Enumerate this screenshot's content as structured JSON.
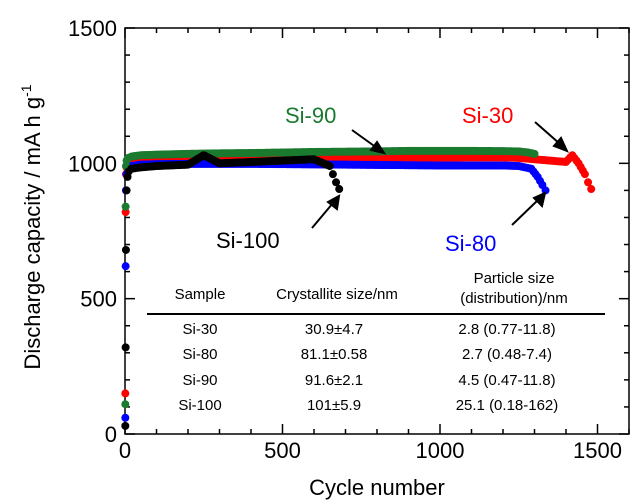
{
  "chart_data": {
    "type": "scatter",
    "xlabel": "Cycle number",
    "ylabel": "Discharge capacity / mA h g",
    "ylabel_superscript": "-1",
    "xlim": [
      0,
      1600
    ],
    "ylim": [
      0,
      1500
    ],
    "xticks": [
      "0",
      "500",
      "1000",
      "1500"
    ],
    "yticks": [
      "0",
      "500",
      "1000",
      "1500"
    ],
    "grid": false,
    "series": [
      {
        "name": "Si-30",
        "color": "#ff0000",
        "x": [
          1,
          2,
          3,
          5,
          10,
          20,
          50,
          100,
          200,
          300,
          400,
          500,
          600,
          700,
          800,
          900,
          1000,
          1100,
          1200,
          1250,
          1300,
          1350,
          1400,
          1420,
          1440,
          1460,
          1470,
          1480
        ],
        "y": [
          150,
          820,
          960,
          985,
          1000,
          1005,
          1008,
          1010,
          1012,
          1013,
          1015,
          1016,
          1017,
          1018,
          1019,
          1020,
          1021,
          1022,
          1022,
          1020,
          1015,
          1010,
          1005,
          1030,
          1000,
          960,
          930,
          905
        ]
      },
      {
        "name": "Si-80",
        "color": "#0000ff",
        "x": [
          1,
          2,
          3,
          5,
          10,
          20,
          50,
          100,
          200,
          300,
          400,
          500,
          600,
          700,
          800,
          900,
          1000,
          1100,
          1200,
          1250,
          1290,
          1310,
          1325,
          1335
        ],
        "y": [
          60,
          620,
          900,
          960,
          980,
          990,
          995,
          997,
          998,
          998,
          998,
          997,
          996,
          995,
          994,
          993,
          992,
          992,
          992,
          990,
          980,
          950,
          920,
          900
        ]
      },
      {
        "name": "Si-90",
        "color": "#1a7a2e",
        "x": [
          1,
          2,
          3,
          5,
          10,
          20,
          50,
          100,
          200,
          300,
          400,
          500,
          600,
          700,
          800,
          900,
          1000,
          1100,
          1200,
          1250,
          1280,
          1300
        ],
        "y": [
          110,
          840,
          990,
          1010,
          1020,
          1025,
          1030,
          1032,
          1035,
          1037,
          1038,
          1040,
          1042,
          1043,
          1044,
          1046,
          1046,
          1046,
          1045,
          1044,
          1040,
          1035
        ]
      },
      {
        "name": "Si-100",
        "color": "#000000",
        "x": [
          1,
          2,
          3,
          5,
          8,
          12,
          20,
          50,
          100,
          200,
          250,
          300,
          400,
          500,
          600,
          630,
          650,
          660,
          670,
          680
        ],
        "y": [
          30,
          320,
          680,
          900,
          950,
          970,
          980,
          985,
          990,
          995,
          1030,
          1000,
          1005,
          1010,
          1015,
          1000,
          990,
          960,
          930,
          905
        ]
      }
    ],
    "annotations": [
      {
        "text": "Si-30",
        "color": "#ff0000"
      },
      {
        "text": "Si-80",
        "color": "#0000ff"
      },
      {
        "text": "Si-90",
        "color": "#1a7a2e"
      },
      {
        "text": "Si-100",
        "color": "#000000"
      }
    ],
    "table": {
      "headers": [
        "Sample",
        "Crystallite size/nm",
        "Particle size",
        "(distribution)/nm"
      ],
      "rows": [
        [
          "Si-30",
          "30.9±4.7",
          "2.8 (0.77-11.8)"
        ],
        [
          "Si-80",
          "81.1±0.58",
          "2.7 (0.48-7.4)"
        ],
        [
          "Si-90",
          "91.6±2.1",
          "4.5 (0.47-11.8)"
        ],
        [
          "Si-100",
          "101±5.9",
          "25.1 (0.18-162)"
        ]
      ]
    }
  }
}
